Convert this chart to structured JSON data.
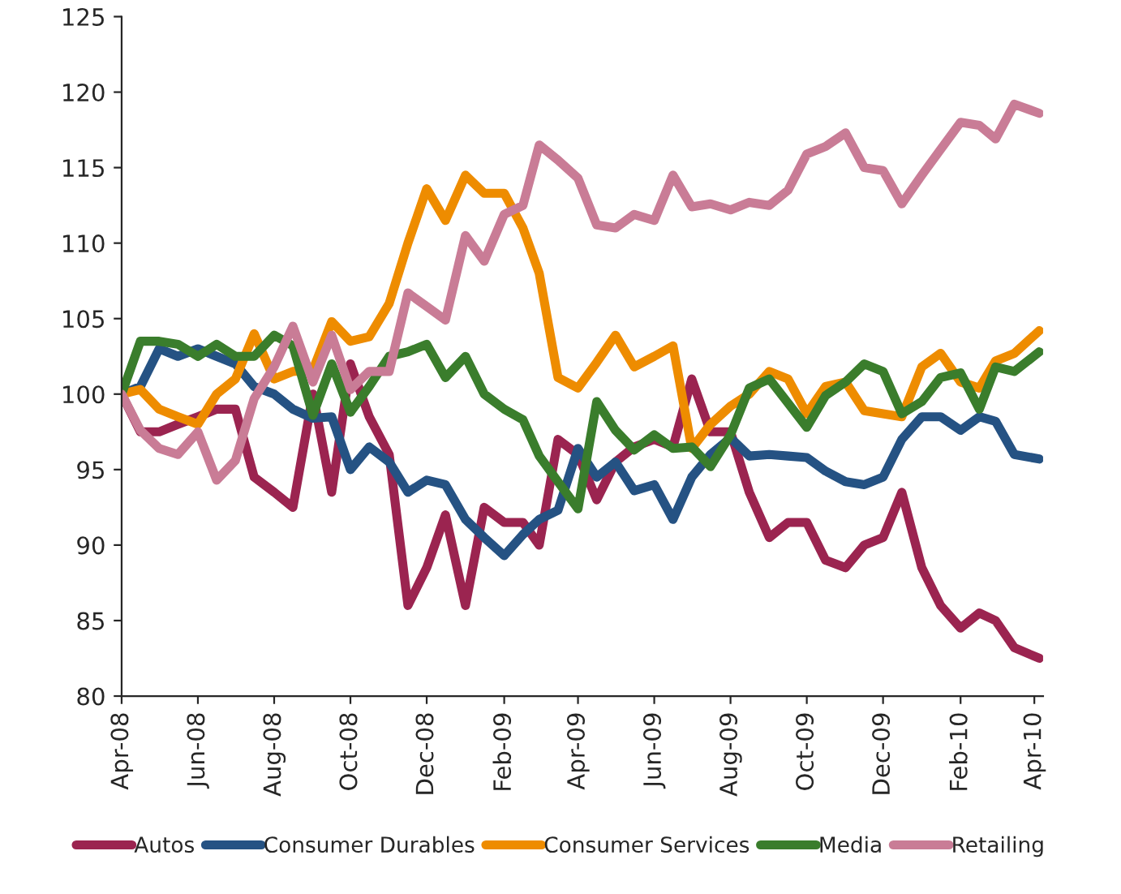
{
  "chart_data": {
    "type": "line",
    "x": [
      "2008-04-01",
      "2008-04-16",
      "2008-05-01",
      "2008-05-16",
      "2008-06-01",
      "2008-06-16",
      "2008-07-01",
      "2008-07-16",
      "2008-08-01",
      "2008-08-16",
      "2008-09-01",
      "2008-09-16",
      "2008-10-01",
      "2008-10-16",
      "2008-11-01",
      "2008-11-16",
      "2008-12-01",
      "2008-12-16",
      "2009-01-01",
      "2009-01-16",
      "2009-02-01",
      "2009-02-16",
      "2009-03-01",
      "2009-03-16",
      "2009-04-01",
      "2009-04-16",
      "2009-05-01",
      "2009-05-16",
      "2009-06-01",
      "2009-06-16",
      "2009-07-01",
      "2009-07-16",
      "2009-08-01",
      "2009-08-16",
      "2009-09-01",
      "2009-09-16",
      "2009-10-01",
      "2009-10-16",
      "2009-11-01",
      "2009-11-16",
      "2009-12-01",
      "2009-12-16",
      "2010-01-01",
      "2010-01-16",
      "2010-02-01",
      "2010-02-16",
      "2010-03-01",
      "2010-03-16",
      "2010-04-05"
    ],
    "series": [
      {
        "name": "Autos",
        "color": "#9b2450",
        "values": [
          100,
          97.5,
          97.5,
          98,
          98.5,
          99,
          99,
          94.5,
          93.5,
          92.5,
          100,
          93.5,
          102,
          98.5,
          96,
          86,
          88.5,
          92,
          86,
          92.5,
          91.5,
          91.5,
          90,
          97,
          96,
          93,
          95.5,
          96.5,
          97,
          96.5,
          101,
          97.5,
          97.5,
          93.5,
          90.5,
          91.5,
          91.5,
          89,
          88.5,
          90,
          90.5,
          93.5,
          88.5,
          86,
          84.5,
          85.5,
          85,
          83.2,
          82.5
        ]
      },
      {
        "name": "Consumer Durables",
        "color": "#255283",
        "values": [
          100,
          100.5,
          103,
          102.5,
          103,
          102.5,
          102,
          100.5,
          100,
          99,
          98.4,
          98.5,
          95,
          96.5,
          95.5,
          93.5,
          94.3,
          94,
          91.7,
          90.5,
          89.3,
          90.7,
          91.7,
          92.3,
          96.4,
          94.5,
          95.5,
          93.6,
          94,
          91.7,
          94.5,
          96,
          97.1,
          95.9,
          96,
          95.9,
          95.8,
          94.9,
          94.2,
          94,
          94.5,
          97,
          98.5,
          98.5,
          97.6,
          98.5,
          98.2,
          96,
          95.7
        ]
      },
      {
        "name": "Consumer Services",
        "color": "#ee8c00",
        "values": [
          100,
          100.3,
          99,
          98.5,
          98,
          100,
          101,
          104,
          101,
          101.5,
          101.6,
          104.8,
          103.5,
          103.8,
          106,
          110,
          113.6,
          111.5,
          114.5,
          113.3,
          113.3,
          111,
          108,
          101.1,
          100.4,
          102.1,
          103.9,
          101.8,
          102.5,
          103.2,
          96.4,
          98,
          99.2,
          100,
          101.5,
          101,
          98.7,
          100.5,
          100.8,
          98.9,
          98.7,
          98.5,
          101.8,
          102.7,
          100.8,
          100.4,
          102.2,
          102.7,
          104.2
        ]
      },
      {
        "name": "Media",
        "color": "#3a7d2c",
        "values": [
          100,
          103.5,
          103.5,
          103.3,
          102.5,
          103.3,
          102.5,
          102.5,
          103.9,
          103.2,
          98.6,
          102,
          98.8,
          100.5,
          102.5,
          102.8,
          103.3,
          101.1,
          102.5,
          100,
          99,
          98.3,
          95.9,
          94.2,
          92.4,
          99.5,
          97.6,
          96.3,
          97.3,
          96.4,
          96.5,
          95.2,
          97.3,
          100.4,
          101,
          99.4,
          97.8,
          99.9,
          100.8,
          102,
          101.5,
          98.7,
          99.5,
          101.1,
          101.4,
          99,
          101.8,
          101.5,
          102.8
        ]
      },
      {
        "name": "Retailing",
        "color": "#c97c96",
        "values": [
          100,
          97.6,
          96.4,
          96,
          97.5,
          94.3,
          95.6,
          99.7,
          101.8,
          104.5,
          100.8,
          103.9,
          100.3,
          101.5,
          101.5,
          106.7,
          105.8,
          104.9,
          110.5,
          108.8,
          111.9,
          112.5,
          116.5,
          115.5,
          114.3,
          111.2,
          111,
          111.9,
          111.5,
          114.5,
          112.4,
          112.6,
          112.2,
          112.7,
          112.5,
          113.5,
          115.9,
          116.4,
          117.3,
          115,
          114.8,
          112.6,
          114.5,
          116.2,
          118,
          117.8,
          116.9,
          119.2,
          118.6
        ]
      }
    ],
    "xlim": [
      "2008-04-01",
      "2010-04-08"
    ],
    "xticks": [
      {
        "value": "2008-04-01",
        "label": "Apr-08"
      },
      {
        "value": "2008-06-01",
        "label": "Jun-08"
      },
      {
        "value": "2008-08-01",
        "label": "Aug-08"
      },
      {
        "value": "2008-10-01",
        "label": "Oct-08"
      },
      {
        "value": "2008-12-01",
        "label": "Dec-08"
      },
      {
        "value": "2009-02-01",
        "label": "Feb-09"
      },
      {
        "value": "2009-04-01",
        "label": "Apr-09"
      },
      {
        "value": "2009-06-01",
        "label": "Jun-09"
      },
      {
        "value": "2009-08-01",
        "label": "Aug-09"
      },
      {
        "value": "2009-10-01",
        "label": "Oct-09"
      },
      {
        "value": "2009-12-01",
        "label": "Dec-09"
      },
      {
        "value": "2010-02-01",
        "label": "Feb-10"
      },
      {
        "value": "2010-04-01",
        "label": "Apr-10"
      }
    ],
    "ylim": [
      80,
      125
    ],
    "yticks": [
      80,
      85,
      90,
      95,
      100,
      105,
      110,
      115,
      120,
      125
    ],
    "grid": false,
    "legend": "bottom",
    "line_style": "solid",
    "marker": "none"
  }
}
